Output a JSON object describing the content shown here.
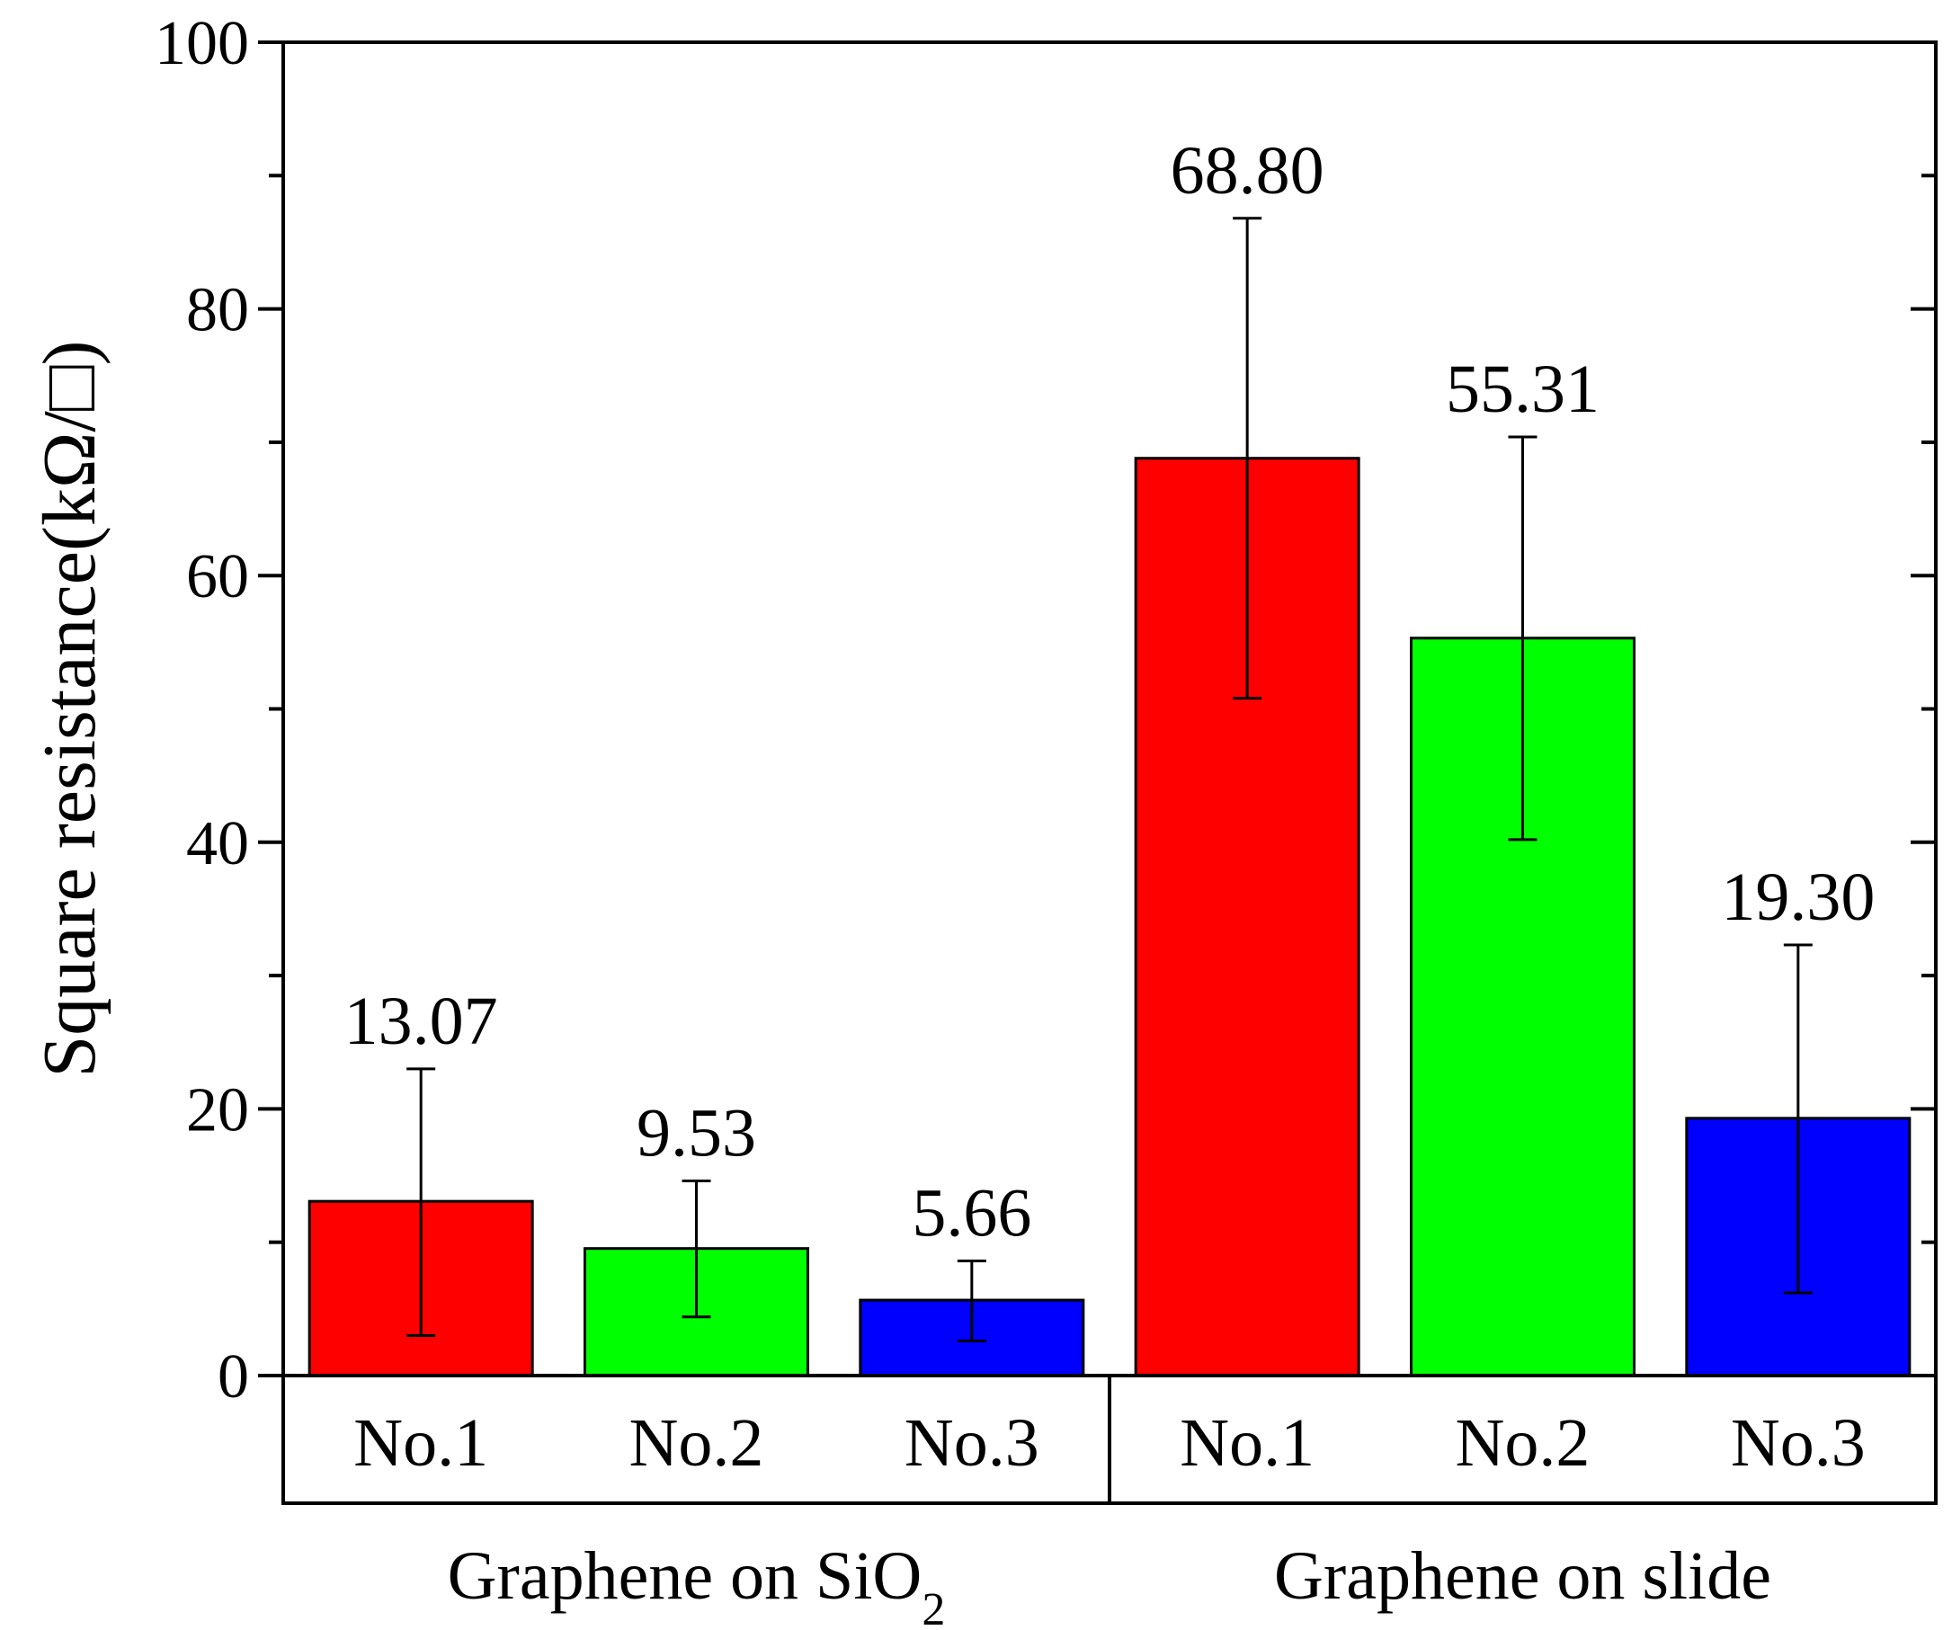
{
  "chart_data": {
    "type": "bar",
    "ylabel": "Square resistance(kΩ/□)",
    "ylim": [
      0,
      100
    ],
    "yticks": [
      "0",
      "20",
      "40",
      "60",
      "80",
      "100"
    ],
    "groups": [
      {
        "label": "Graphene on SiO",
        "label_subscript": "2",
        "bars": [
          {
            "category": "No.1",
            "value": 13.07,
            "value_label": "13.07",
            "err_low": 3.0,
            "err_high": 23.0,
            "color": "#ff0000"
          },
          {
            "category": "No.2",
            "value": 9.53,
            "value_label": "9.53",
            "err_low": 4.4,
            "err_high": 14.6,
            "color": "#00ff00"
          },
          {
            "category": "No.3",
            "value": 5.66,
            "value_label": "5.66",
            "err_low": 2.6,
            "err_high": 8.6,
            "color": "#0000ff"
          }
        ]
      },
      {
        "label": "Graphene on slide",
        "label_subscript": "",
        "bars": [
          {
            "category": "No.1",
            "value": 68.8,
            "value_label": "68.80",
            "err_low": 50.8,
            "err_high": 86.8,
            "color": "#ff0000"
          },
          {
            "category": "No.2",
            "value": 55.31,
            "value_label": "55.31",
            "err_low": 40.2,
            "err_high": 70.4,
            "color": "#00ff00"
          },
          {
            "category": "No.3",
            "value": 19.3,
            "value_label": "19.30",
            "err_low": 6.2,
            "err_high": 32.3,
            "color": "#0000ff"
          }
        ]
      }
    ]
  }
}
